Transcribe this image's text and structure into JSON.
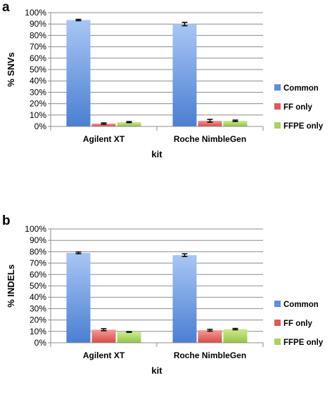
{
  "colors": {
    "common": "#5b8fdc",
    "ff_only": "#e05a55",
    "ffpe_only": "#a9d25e"
  },
  "chart_data": [
    {
      "panel": "a",
      "type": "bar",
      "categories": [
        "Agilent XT",
        "Roche NimbleGen"
      ],
      "series": [
        {
          "name": "Common",
          "values": [
            93.5,
            90.0
          ],
          "errors": [
            0.6,
            1.5
          ]
        },
        {
          "name": "FF only",
          "values": [
            2.5,
            5.0
          ],
          "errors": [
            0.6,
            1.2
          ]
        },
        {
          "name": "FFPE only",
          "values": [
            3.8,
            5.0
          ],
          "errors": [
            0.5,
            0.6
          ]
        }
      ],
      "xlabel": "kit",
      "ylabel": "% SNVs",
      "ylim": [
        0,
        100
      ],
      "yticks": [
        "0%",
        "10%",
        "20%",
        "30%",
        "40%",
        "50%",
        "60%",
        "70%",
        "80%",
        "90%",
        "100%"
      ],
      "grid": true,
      "legend": "right"
    },
    {
      "panel": "b",
      "type": "bar",
      "categories": [
        "Agilent XT",
        "Roche NimbleGen"
      ],
      "series": [
        {
          "name": "Common",
          "values": [
            79.0,
            77.0
          ],
          "errors": [
            0.8,
            1.2
          ]
        },
        {
          "name": "FF only",
          "values": [
            11.5,
            11.0
          ],
          "errors": [
            0.9,
            0.8
          ]
        },
        {
          "name": "FFPE only",
          "values": [
            9.5,
            12.0
          ],
          "errors": [
            0.3,
            0.6
          ]
        }
      ],
      "xlabel": "kit",
      "ylabel": "% INDELs",
      "ylim": [
        0,
        100
      ],
      "yticks": [
        "0%",
        "10%",
        "20%",
        "30%",
        "40%",
        "50%",
        "60%",
        "70%",
        "80%",
        "90%",
        "100%"
      ],
      "grid": true,
      "legend": "right"
    }
  ]
}
